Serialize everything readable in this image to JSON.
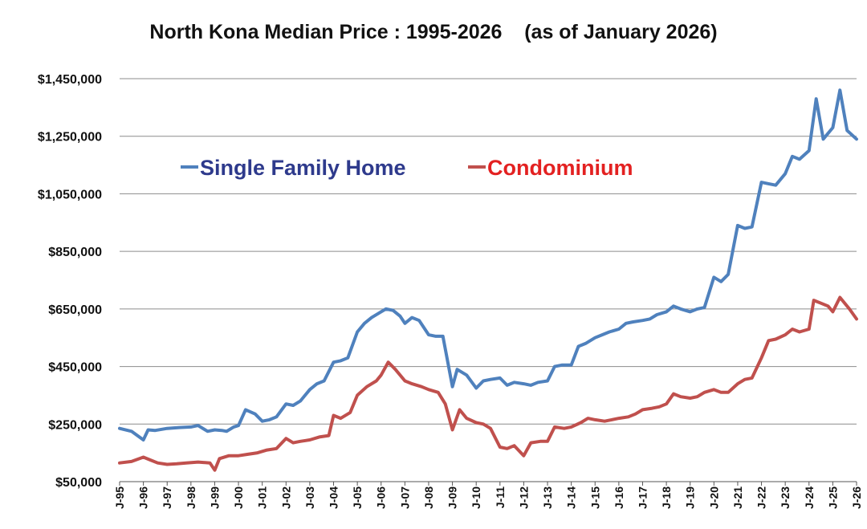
{
  "chart_data": {
    "type": "line",
    "title": "North Kona Median Price : 1995-2026    (as of January 2026)",
    "xlabel": "",
    "ylabel": "",
    "ylim": [
      50000,
      1450000
    ],
    "y_ticks": [
      "$50,000",
      "$250,000",
      "$450,000",
      "$650,000",
      "$850,000",
      "$1,050,000",
      "$1,250,000",
      "$1,450,000"
    ],
    "y_tick_values": [
      50000,
      250000,
      450000,
      650000,
      850000,
      1050000,
      1250000,
      1450000
    ],
    "x_ticks": [
      "J-95",
      "J-96",
      "J-97",
      "J-98",
      "J-99",
      "J-00",
      "J-01",
      "J-02",
      "J-03",
      "J-04",
      "J-05",
      "J-06",
      "J-07",
      "J-08",
      "J-09",
      "J-10",
      "J-11",
      "J-12",
      "J-13",
      "J-14",
      "J-15",
      "J-16",
      "J-17",
      "J-18",
      "J-19",
      "J-20",
      "J-21",
      "J-22",
      "J-23",
      "J-24",
      "J-25",
      "J-26"
    ],
    "grid": "horizontal",
    "legend_placement": "upper-left",
    "series": [
      {
        "name": "Single Family Home",
        "color": "#4f81bd",
        "x": [
          1995.0,
          1995.5,
          1996.0,
          1996.2,
          1996.5,
          1997.0,
          1997.5,
          1998.0,
          1998.3,
          1998.7,
          1999.0,
          1999.3,
          1999.5,
          1999.8,
          2000.0,
          2000.3,
          2000.7,
          2001.0,
          2001.3,
          2001.6,
          2002.0,
          2002.3,
          2002.6,
          2003.0,
          2003.3,
          2003.6,
          2004.0,
          2004.3,
          2004.6,
          2005.0,
          2005.3,
          2005.6,
          2006.0,
          2006.2,
          2006.5,
          2006.8,
          2007.0,
          2007.3,
          2007.6,
          2008.0,
          2008.3,
          2008.6,
          2009.0,
          2009.2,
          2009.6,
          2010.0,
          2010.3,
          2010.6,
          2011.0,
          2011.3,
          2011.6,
          2012.0,
          2012.3,
          2012.6,
          2013.0,
          2013.3,
          2013.6,
          2014.0,
          2014.3,
          2014.6,
          2015.0,
          2015.3,
          2015.6,
          2016.0,
          2016.3,
          2016.6,
          2017.0,
          2017.3,
          2017.6,
          2018.0,
          2018.3,
          2018.6,
          2019.0,
          2019.3,
          2019.6,
          2020.0,
          2020.3,
          2020.6,
          2021.0,
          2021.3,
          2021.6,
          2022.0,
          2022.3,
          2022.6,
          2023.0,
          2023.3,
          2023.6,
          2024.0,
          2024.3,
          2024.6,
          2025.0,
          2025.3,
          2025.6,
          2026.0
        ],
        "values": [
          235000,
          225000,
          195000,
          230000,
          228000,
          235000,
          238000,
          240000,
          245000,
          225000,
          230000,
          228000,
          225000,
          240000,
          245000,
          300000,
          285000,
          260000,
          265000,
          275000,
          320000,
          315000,
          330000,
          370000,
          390000,
          400000,
          465000,
          470000,
          480000,
          570000,
          600000,
          620000,
          640000,
          650000,
          645000,
          625000,
          600000,
          620000,
          610000,
          560000,
          555000,
          555000,
          380000,
          440000,
          420000,
          375000,
          400000,
          405000,
          410000,
          385000,
          395000,
          390000,
          385000,
          395000,
          400000,
          450000,
          455000,
          455000,
          520000,
          530000,
          550000,
          560000,
          570000,
          580000,
          600000,
          605000,
          610000,
          615000,
          630000,
          640000,
          660000,
          650000,
          640000,
          650000,
          655000,
          760000,
          745000,
          770000,
          940000,
          930000,
          935000,
          1090000,
          1085000,
          1080000,
          1120000,
          1180000,
          1170000,
          1200000,
          1380000,
          1240000,
          1280000,
          1410000,
          1270000,
          1240000
        ]
      },
      {
        "name": "Condominium",
        "color": "#c0504d",
        "x": [
          1995.0,
          1995.5,
          1996.0,
          1996.3,
          1996.6,
          1997.0,
          1997.4,
          1997.8,
          1998.3,
          1998.8,
          1999.0,
          1999.2,
          1999.6,
          2000.0,
          2000.4,
          2000.8,
          2001.2,
          2001.6,
          2002.0,
          2002.3,
          2002.6,
          2003.0,
          2003.4,
          2003.8,
          2004.0,
          2004.3,
          2004.7,
          2005.0,
          2005.4,
          2005.8,
          2006.0,
          2006.3,
          2006.6,
          2007.0,
          2007.3,
          2007.7,
          2008.0,
          2008.4,
          2008.7,
          2009.0,
          2009.3,
          2009.6,
          2010.0,
          2010.3,
          2010.6,
          2011.0,
          2011.3,
          2011.6,
          2012.0,
          2012.3,
          2012.7,
          2013.0,
          2013.3,
          2013.7,
          2014.0,
          2014.4,
          2014.7,
          2015.0,
          2015.4,
          2015.7,
          2016.0,
          2016.4,
          2016.7,
          2017.0,
          2017.4,
          2017.7,
          2018.0,
          2018.3,
          2018.6,
          2019.0,
          2019.3,
          2019.6,
          2020.0,
          2020.3,
          2020.6,
          2021.0,
          2021.3,
          2021.6,
          2022.0,
          2022.3,
          2022.6,
          2023.0,
          2023.3,
          2023.6,
          2024.0,
          2024.2,
          2024.5,
          2024.8,
          2025.0,
          2025.3,
          2025.7,
          2026.0
        ],
        "values": [
          115000,
          120000,
          135000,
          125000,
          115000,
          110000,
          112000,
          115000,
          118000,
          115000,
          90000,
          130000,
          140000,
          140000,
          145000,
          150000,
          160000,
          165000,
          200000,
          185000,
          190000,
          195000,
          205000,
          210000,
          280000,
          270000,
          290000,
          350000,
          380000,
          400000,
          420000,
          465000,
          440000,
          400000,
          390000,
          380000,
          370000,
          360000,
          320000,
          230000,
          300000,
          270000,
          255000,
          250000,
          235000,
          170000,
          165000,
          175000,
          140000,
          185000,
          190000,
          190000,
          240000,
          235000,
          240000,
          255000,
          270000,
          265000,
          260000,
          265000,
          270000,
          275000,
          285000,
          300000,
          305000,
          310000,
          320000,
          355000,
          345000,
          340000,
          345000,
          360000,
          370000,
          360000,
          360000,
          390000,
          405000,
          410000,
          480000,
          540000,
          545000,
          560000,
          580000,
          570000,
          580000,
          680000,
          670000,
          660000,
          640000,
          690000,
          650000,
          615000
        ]
      }
    ]
  }
}
